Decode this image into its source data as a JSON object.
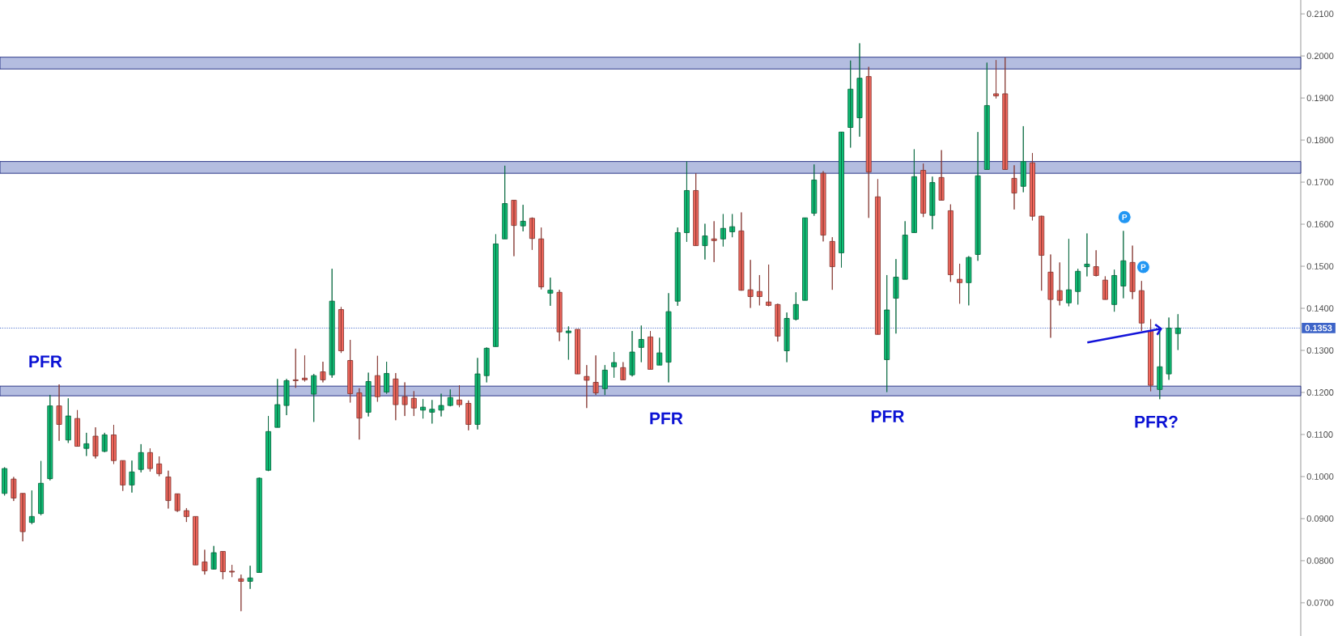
{
  "chart_data": {
    "type": "candlestick",
    "categories": [
      null,
      null,
      null,
      null,
      null,
      null,
      null,
      null,
      null,
      null,
      null,
      null,
      null,
      null,
      null,
      null,
      null,
      null,
      null,
      null,
      null,
      null,
      null,
      null,
      null,
      null,
      null,
      null,
      null,
      null,
      null,
      null,
      null,
      null,
      null,
      null,
      null,
      null,
      null,
      null,
      null,
      null,
      null,
      null,
      null,
      null,
      null,
      null,
      null,
      null,
      null,
      null,
      null,
      null,
      null,
      null,
      null,
      null,
      null,
      null,
      null,
      null,
      null,
      null,
      null,
      null,
      null,
      null,
      null,
      null,
      null,
      null,
      null,
      null,
      null,
      null,
      null,
      null,
      null,
      null,
      null,
      null,
      null,
      null,
      null,
      null,
      null,
      null,
      null,
      null,
      null,
      null,
      null,
      null,
      null,
      null,
      null,
      null,
      null,
      null,
      null,
      null,
      null,
      null,
      null,
      null,
      null,
      null,
      null,
      null,
      null,
      null,
      null,
      null,
      null,
      null,
      null,
      null,
      null,
      null,
      null,
      null,
      null,
      null,
      null,
      null,
      null,
      null,
      null,
      null,
      null,
      null,
      null,
      null,
      null,
      null,
      null,
      null,
      null,
      null,
      null,
      null,
      null
    ],
    "ohlc": [
      [
        0.096,
        0.1022,
        0.0955,
        0.1019
      ],
      [
        0.0994,
        0.0999,
        0.0942,
        0.0949
      ],
      [
        0.096,
        0.096,
        0.0846,
        0.0869
      ],
      [
        0.0891,
        0.0967,
        0.0887,
        0.0905
      ],
      [
        0.0912,
        0.1037,
        0.0908,
        0.0984
      ],
      [
        0.0995,
        0.1194,
        0.0991,
        0.1168
      ],
      [
        0.1168,
        0.1219,
        0.1085,
        0.1124
      ],
      [
        0.1087,
        0.1186,
        0.108,
        0.1144
      ],
      [
        0.1138,
        0.1158,
        0.1072,
        0.1072
      ],
      [
        0.1067,
        0.1104,
        0.1049,
        0.1078
      ],
      [
        0.1096,
        0.1117,
        0.1043,
        0.1049
      ],
      [
        0.106,
        0.1104,
        0.1058,
        0.1099
      ],
      [
        0.1099,
        0.1123,
        0.103,
        0.1038
      ],
      [
        0.1038,
        0.1038,
        0.0966,
        0.098
      ],
      [
        0.098,
        0.1038,
        0.0962,
        0.1011
      ],
      [
        0.1017,
        0.1077,
        0.101,
        0.1057
      ],
      [
        0.1057,
        0.1067,
        0.1012,
        0.1019
      ],
      [
        0.103,
        0.1048,
        0.1001,
        0.1007
      ],
      [
        0.0999,
        0.1014,
        0.0924,
        0.0943
      ],
      [
        0.0959,
        0.0959,
        0.0916,
        0.0919
      ],
      [
        0.0919,
        0.0925,
        0.0892,
        0.0905
      ],
      [
        0.0905,
        0.0905,
        0.079,
        0.079
      ],
      [
        0.0797,
        0.0826,
        0.0767,
        0.0776
      ],
      [
        0.078,
        0.0835,
        0.0779,
        0.0819
      ],
      [
        0.0822,
        0.0822,
        0.0756,
        0.0774
      ],
      [
        0.0775,
        0.079,
        0.0761,
        0.0773
      ],
      [
        0.0757,
        0.0767,
        0.068,
        0.0751
      ],
      [
        0.0751,
        0.0788,
        0.0733,
        0.0759
      ],
      [
        0.0772,
        0.0998,
        0.0772,
        0.0996
      ],
      [
        0.1015,
        0.1144,
        0.1013,
        0.1107
      ],
      [
        0.1117,
        0.1232,
        0.1117,
        0.1171
      ],
      [
        0.1169,
        0.1232,
        0.1146,
        0.1228
      ],
      [
        0.123,
        0.1304,
        0.1211,
        0.1228
      ],
      [
        0.1234,
        0.1288,
        0.1226,
        0.123
      ],
      [
        0.1196,
        0.1244,
        0.113,
        0.124
      ],
      [
        0.1249,
        0.1273,
        0.1224,
        0.123
      ],
      [
        0.1242,
        0.1494,
        0.1235,
        0.1417
      ],
      [
        0.1397,
        0.1403,
        0.1294,
        0.1299
      ],
      [
        0.1276,
        0.1325,
        0.1176,
        0.1197
      ],
      [
        0.1199,
        0.121,
        0.1088,
        0.1139
      ],
      [
        0.1153,
        0.1247,
        0.1143,
        0.1226
      ],
      [
        0.124,
        0.1287,
        0.1178,
        0.119
      ],
      [
        0.1201,
        0.1273,
        0.1197,
        0.1245
      ],
      [
        0.1232,
        0.1246,
        0.1134,
        0.1171
      ],
      [
        0.119,
        0.1224,
        0.1144,
        0.1171
      ],
      [
        0.1186,
        0.1203,
        0.1144,
        0.1163
      ],
      [
        0.1158,
        0.1184,
        0.1138,
        0.1165
      ],
      [
        0.1153,
        0.1182,
        0.1126,
        0.116
      ],
      [
        0.1158,
        0.1197,
        0.1143,
        0.1169
      ],
      [
        0.1169,
        0.1207,
        0.1167,
        0.1188
      ],
      [
        0.1182,
        0.1217,
        0.1165,
        0.1171
      ],
      [
        0.1174,
        0.1181,
        0.111,
        0.1124
      ],
      [
        0.1124,
        0.1282,
        0.1112,
        0.1244
      ],
      [
        0.124,
        0.1307,
        0.1224,
        0.1305
      ],
      [
        0.1309,
        0.1576,
        0.1309,
        0.1553
      ],
      [
        0.1565,
        0.1739,
        0.1565,
        0.1649
      ],
      [
        0.1657,
        0.1657,
        0.1524,
        0.1597
      ],
      [
        0.1596,
        0.1646,
        0.1583,
        0.1607
      ],
      [
        0.1614,
        0.1616,
        0.1539,
        0.1566
      ],
      [
        0.1565,
        0.1592,
        0.1445,
        0.1451
      ],
      [
        0.1436,
        0.1473,
        0.1406,
        0.1443
      ],
      [
        0.1438,
        0.1444,
        0.1322,
        0.1344
      ],
      [
        0.1342,
        0.1357,
        0.1278,
        0.1346
      ],
      [
        0.135,
        0.135,
        0.1244,
        0.1244
      ],
      [
        0.1238,
        0.1265,
        0.1163,
        0.1229
      ],
      [
        0.1224,
        0.1288,
        0.1194,
        0.1199
      ],
      [
        0.1209,
        0.1265,
        0.1194,
        0.1253
      ],
      [
        0.1261,
        0.1296,
        0.1235,
        0.1271
      ],
      [
        0.1259,
        0.1272,
        0.123,
        0.123
      ],
      [
        0.1242,
        0.1346,
        0.1238,
        0.1296
      ],
      [
        0.1307,
        0.1359,
        0.1272,
        0.1326
      ],
      [
        0.1332,
        0.1346,
        0.1255,
        0.1255
      ],
      [
        0.1265,
        0.133,
        0.1265,
        0.1294
      ],
      [
        0.1272,
        0.1436,
        0.1224,
        0.1392
      ],
      [
        0.1417,
        0.1592,
        0.1406,
        0.158
      ],
      [
        0.158,
        0.1749,
        0.1558,
        0.168
      ],
      [
        0.168,
        0.1721,
        0.1549,
        0.1549
      ],
      [
        0.1549,
        0.1601,
        0.1516,
        0.1572
      ],
      [
        0.1565,
        0.1607,
        0.151,
        0.1561
      ],
      [
        0.1565,
        0.1624,
        0.1547,
        0.159
      ],
      [
        0.1582,
        0.1624,
        0.1569,
        0.1594
      ],
      [
        0.1584,
        0.1628,
        0.1442,
        0.1443
      ],
      [
        0.1444,
        0.1515,
        0.1401,
        0.1428
      ],
      [
        0.144,
        0.1479,
        0.1407,
        0.1428
      ],
      [
        0.1415,
        0.1504,
        0.1405,
        0.1407
      ],
      [
        0.1409,
        0.1411,
        0.1321,
        0.1334
      ],
      [
        0.1299,
        0.139,
        0.1272,
        0.1376
      ],
      [
        0.1374,
        0.1438,
        0.1371,
        0.1409
      ],
      [
        0.1419,
        0.1615,
        0.1419,
        0.1615
      ],
      [
        0.1626,
        0.1742,
        0.162,
        0.1705
      ],
      [
        0.1721,
        0.1726,
        0.1559,
        0.1574
      ],
      [
        0.1559,
        0.1569,
        0.1444,
        0.1499
      ],
      [
        0.1532,
        0.1819,
        0.1497,
        0.1819
      ],
      [
        0.183,
        0.1989,
        0.1782,
        0.1921
      ],
      [
        0.1853,
        0.203,
        0.1808,
        0.1947
      ],
      [
        0.1951,
        0.1974,
        0.1615,
        0.1724
      ],
      [
        0.1665,
        0.1707,
        0.1338,
        0.1338
      ],
      [
        0.1278,
        0.1479,
        0.1201,
        0.1396
      ],
      [
        0.1424,
        0.1517,
        0.134,
        0.1474
      ],
      [
        0.1469,
        0.1607,
        0.1469,
        0.1574
      ],
      [
        0.158,
        0.1778,
        0.158,
        0.1713
      ],
      [
        0.1728,
        0.1744,
        0.1617,
        0.1626
      ],
      [
        0.1621,
        0.1713,
        0.1588,
        0.1699
      ],
      [
        0.1711,
        0.1776,
        0.1657,
        0.1657
      ],
      [
        0.1632,
        0.1647,
        0.1463,
        0.148
      ],
      [
        0.1469,
        0.1506,
        0.1411,
        0.1461
      ],
      [
        0.1461,
        0.1524,
        0.1407,
        0.1521
      ],
      [
        0.1528,
        0.1819,
        0.1513,
        0.1715
      ],
      [
        0.173,
        0.1984,
        0.173,
        0.1882
      ],
      [
        0.191,
        0.199,
        0.1899,
        0.1905
      ],
      [
        0.191,
        0.1996,
        0.173,
        0.173
      ],
      [
        0.1709,
        0.174,
        0.1635,
        0.1674
      ],
      [
        0.169,
        0.1833,
        0.1676,
        0.1749
      ],
      [
        0.1746,
        0.1769,
        0.1609,
        0.1619
      ],
      [
        0.1619,
        0.162,
        0.1442,
        0.1526
      ],
      [
        0.1486,
        0.1528,
        0.133,
        0.1421
      ],
      [
        0.1442,
        0.1509,
        0.1407,
        0.1419
      ],
      [
        0.1413,
        0.1565,
        0.1405,
        0.1444
      ],
      [
        0.144,
        0.1494,
        0.1409,
        0.1488
      ],
      [
        0.1499,
        0.1578,
        0.1476,
        0.1505
      ],
      [
        0.1499,
        0.1538,
        0.1476,
        0.1478
      ],
      [
        0.1467,
        0.1476,
        0.1421,
        0.1421
      ],
      [
        0.1409,
        0.1492,
        0.1392,
        0.1478
      ],
      [
        0.1453,
        0.1584,
        0.1424,
        0.1513
      ],
      [
        0.1509,
        0.1549,
        0.1422,
        0.144
      ],
      [
        0.1442,
        0.1465,
        0.1346,
        0.1365
      ],
      [
        0.1347,
        0.1374,
        0.1203,
        0.1217
      ],
      [
        0.1207,
        0.1351,
        0.1184,
        0.1261
      ],
      [
        0.1244,
        0.1378,
        0.123,
        0.1353
      ],
      [
        0.134,
        0.1386,
        0.1301,
        0.1353
      ],
      null,
      null,
      null,
      null,
      null,
      null,
      null,
      null,
      null,
      null,
      null,
      null,
      null
    ],
    "colors": [
      "#10c077",
      "#f5695e",
      "#f5695e",
      "#10c077",
      "#10c077",
      "#10c077",
      "#f5695e",
      "#10c077",
      "#f5695e",
      "#10c077",
      "#f5695e",
      "#10c077",
      "#f5695e",
      "#f5695e",
      "#10c077",
      "#10c077",
      "#f5695e",
      "#f5695e",
      "#f5695e",
      "#f5695e",
      "#f5695e",
      "#f5695e",
      "#f5695e",
      "#10c077",
      "#f5695e",
      "#f5695e",
      "#f5695e",
      "#10c077",
      "#10c077",
      "#10c077",
      "#10c077",
      "#10c077",
      "#f5695e",
      "#f5695e",
      "#10c077",
      "#f5695e",
      "#10c077",
      "#f5695e",
      "#f5695e",
      "#f5695e",
      "#10c077",
      "#f5695e",
      "#10c077",
      "#f5695e",
      "#f5695e",
      "#f5695e",
      "#10c077",
      "#10c077",
      "#10c077",
      "#10c077",
      "#f5695e",
      "#f5695e",
      "#10c077",
      "#10c077",
      "#10c077",
      "#10c077",
      "#f5695e",
      "#10c077",
      "#f5695e",
      "#f5695e",
      "#10c077",
      "#f5695e",
      "#10c077",
      "#f5695e",
      "#f5695e",
      "#f5695e",
      "#10c077",
      "#10c077",
      "#f5695e",
      "#10c077",
      "#10c077",
      "#f5695e",
      "#10c077",
      "#10c077",
      "#10c077",
      "#10c077",
      "#f5695e",
      "#10c077",
      "#f5695e",
      "#10c077",
      "#10c077",
      "#f5695e",
      "#f5695e",
      "#f5695e",
      "#f5695e",
      "#f5695e",
      "#10c077",
      "#10c077",
      "#10c077",
      "#10c077",
      "#f5695e",
      "#f5695e",
      "#10c077",
      "#10c077",
      "#10c077",
      "#f5695e",
      "#f5695e",
      "#10c077",
      "#10c077",
      "#10c077",
      "#10c077",
      "#f5695e",
      "#10c077",
      "#f5695e",
      "#f5695e",
      "#f5695e",
      "#10c077",
      "#10c077",
      "#10c077",
      "#f5695e",
      "#f5695e",
      "#f5695e",
      "#10c077",
      "#f5695e",
      "#f5695e",
      "#f5695e",
      "#f5695e",
      "#10c077",
      "#10c077",
      "#10c077",
      "#f5695e",
      "#f5695e",
      "#10c077",
      "#10c077",
      "#f5695e",
      "#f5695e",
      "#f5695e",
      "#10c077",
      "#10c077",
      "#10c077",
      null,
      null,
      null,
      null,
      null,
      null,
      null,
      null,
      null,
      null,
      null,
      null,
      null
    ],
    "ylim": [
      0.0621,
      0.2133
    ],
    "yticks": [
      {
        "value": 0.07,
        "label": "0.0700"
      },
      {
        "value": 0.08,
        "label": "0.0800"
      },
      {
        "value": 0.09,
        "label": "0.0900"
      },
      {
        "value": 0.1,
        "label": "0.1000"
      },
      {
        "value": 0.11,
        "label": "0.1100"
      },
      {
        "value": 0.12,
        "label": "0.1200"
      },
      {
        "value": 0.13,
        "label": "0.1300"
      },
      {
        "value": 0.14,
        "label": "0.1400"
      },
      {
        "value": 0.15,
        "label": "0.1500"
      },
      {
        "value": 0.16,
        "label": "0.1600"
      },
      {
        "value": 0.17,
        "label": "0.1700"
      },
      {
        "value": 0.18,
        "label": "0.1800"
      },
      {
        "value": 0.19,
        "label": "0.1900"
      },
      {
        "value": 0.2,
        "label": "0.2000"
      },
      {
        "value": 0.21,
        "label": "0.2100"
      }
    ],
    "tick_labels": "y",
    "bands": [
      {
        "axis": "y",
        "from": 0.1969,
        "to": 0.1997,
        "color": "#b4bde0"
      },
      {
        "axis": "y",
        "from": 0.1721,
        "to": 0.1749,
        "color": "#b4bde0"
      },
      {
        "axis": "y",
        "from": 0.1192,
        "to": 0.1215,
        "color": "#b4bde0"
      }
    ],
    "ref_lines": [
      {
        "axis": "y",
        "value": 0.1353,
        "label": "0.1353",
        "color": "#3d64c8",
        "line_style": "dotted"
      }
    ],
    "annotations": [
      "PFR",
      "PFR",
      "PFR",
      "PFR?",
      "P",
      "P"
    ]
  }
}
